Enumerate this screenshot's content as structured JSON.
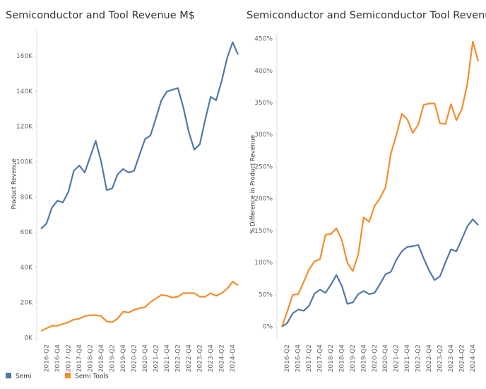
{
  "chart_data": [
    {
      "type": "line",
      "title": "Semiconductor and Tool Revenue M$",
      "y_label": "Product Revenue",
      "categories": [
        null,
        "2016-Q2",
        null,
        "2016-Q4",
        null,
        "2017-Q2",
        null,
        "2017-Q4",
        null,
        "2018-Q2",
        null,
        "2018-Q4",
        null,
        "2019-Q2",
        null,
        "2019-Q4",
        null,
        "2020-Q2",
        null,
        "2020-Q4",
        null,
        "2021-Q2",
        null,
        "2021-Q4",
        null,
        "2022-Q2",
        null,
        "2022-Q4",
        null,
        "2023-Q2",
        null,
        "2023-Q4",
        null,
        "2024-Q2",
        null,
        "2024-Q4",
        null
      ],
      "series": [
        {
          "name": "Semi",
          "color": "#4e79a7",
          "values": [
            62000,
            65000,
            74000,
            78000,
            77000,
            83000,
            95000,
            98000,
            94000,
            103000,
            112000,
            100000,
            84000,
            85000,
            93000,
            96000,
            94000,
            95000,
            104000,
            113000,
            115000,
            125000,
            135000,
            140000,
            141000,
            142000,
            131000,
            117000,
            107000,
            110000,
            124000,
            137000,
            135000,
            146000,
            159000,
            168000,
            161000
          ]
        },
        {
          "name": "Semi Tools",
          "color": "#f28e2b",
          "values": [
            4000,
            5500,
            7000,
            7000,
            8000,
            9000,
            10500,
            11000,
            12500,
            13000,
            13000,
            12500,
            9500,
            9000,
            11000,
            15000,
            14500,
            16000,
            17000,
            17500,
            20500,
            22500,
            24500,
            24000,
            23000,
            23500,
            25500,
            25500,
            25500,
            23500,
            23500,
            25500,
            24000,
            25500,
            28000,
            32000,
            30000
          ]
        }
      ],
      "ylim": [
        0,
        175000
      ],
      "yticks": [
        {
          "value": 0,
          "label": "0K"
        },
        {
          "value": 20000,
          "label": "20K"
        },
        {
          "value": 40000,
          "label": "40K"
        },
        {
          "value": 60000,
          "label": "60K"
        },
        {
          "value": 80000,
          "label": "80K"
        },
        {
          "value": 100000,
          "label": "100K"
        },
        {
          "value": 120000,
          "label": "120K"
        },
        {
          "value": 140000,
          "label": "140K"
        },
        {
          "value": 160000,
          "label": "160K"
        }
      ],
      "legend": "bottom-left"
    },
    {
      "type": "line",
      "title": "Semiconductor and Semiconductor Tool Revenue",
      "y_label": "% Difference in Product Revenue",
      "categories": [
        null,
        "2016-Q2",
        null,
        "2016-Q4",
        null,
        "2017-Q2",
        null,
        "2017-Q4",
        null,
        "2018-Q2",
        null,
        "2018-Q4",
        null,
        "2019-Q2",
        null,
        "2019-Q4",
        null,
        "2020-Q2",
        null,
        "2020-Q4",
        null,
        "2021-Q2",
        null,
        "2021-Q4",
        null,
        "2022-Q2",
        null,
        "2022-Q4",
        null,
        "2023-Q2",
        null,
        "2023-Q4",
        null,
        "2024-Q2",
        null,
        "2024-Q4",
        null
      ],
      "series": [
        {
          "name": "Semi",
          "color": "#4e79a7",
          "values": [
            0,
            6,
            21,
            27,
            25,
            33,
            52,
            58,
            53,
            66,
            81,
            64,
            36,
            38,
            51,
            56,
            51,
            53,
            67,
            82,
            86,
            105,
            118,
            125,
            126,
            128,
            107,
            88,
            73,
            79,
            101,
            121,
            118,
            137,
            157,
            168,
            159
          ]
        },
        {
          "name": "Semi Tools",
          "color": "#f28e2b",
          "values": [
            0,
            24,
            50,
            51,
            70,
            90,
            102,
            106,
            144,
            145,
            154,
            136,
            100,
            87,
            113,
            171,
            164,
            189,
            201,
            218,
            271,
            300,
            333,
            324,
            303,
            316,
            347,
            349,
            349,
            318,
            317,
            348,
            323,
            340,
            380,
            446,
            415
          ]
        }
      ],
      "ylim": [
        -15,
        460
      ],
      "yticks": [
        {
          "value": 0,
          "label": "0%"
        },
        {
          "value": 50,
          "label": "50%"
        },
        {
          "value": 100,
          "label": "100%"
        },
        {
          "value": 150,
          "label": "150%"
        },
        {
          "value": 200,
          "label": "200%"
        },
        {
          "value": 250,
          "label": "250%"
        },
        {
          "value": 300,
          "label": "300%"
        },
        {
          "value": 350,
          "label": "350%"
        },
        {
          "value": 400,
          "label": "400%"
        },
        {
          "value": 450,
          "label": "450%"
        }
      ]
    }
  ]
}
